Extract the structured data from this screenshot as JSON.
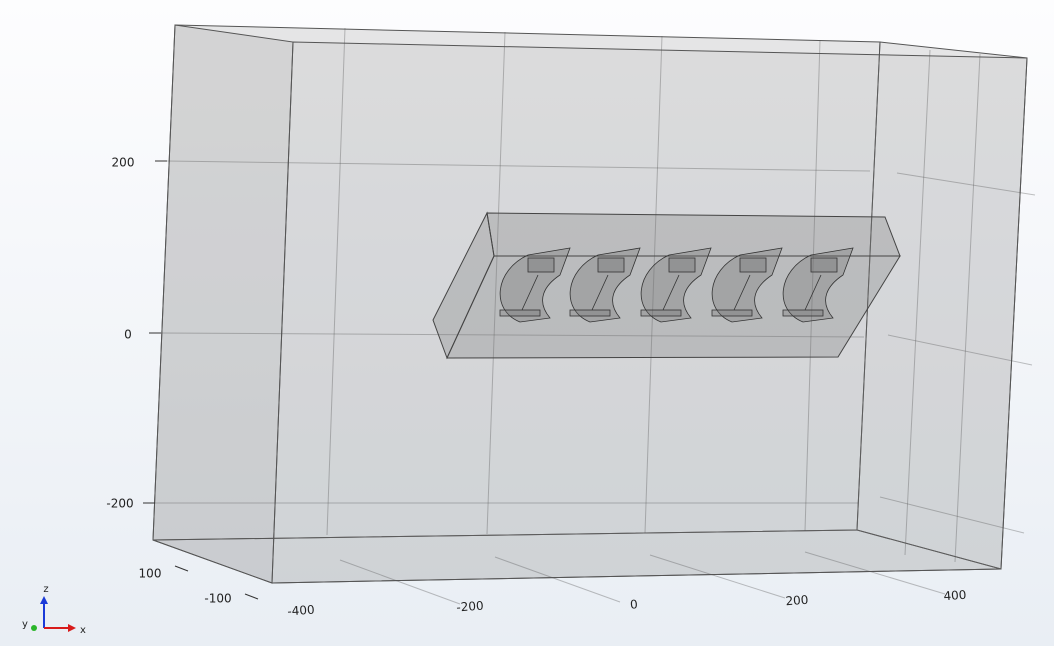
{
  "z_axis": {
    "ticks": [
      "200",
      "0",
      "-200"
    ]
  },
  "y_axis": {
    "ticks": [
      "100",
      "-100"
    ]
  },
  "x_axis": {
    "ticks": [
      "-400",
      "-200",
      "0",
      "200",
      "400"
    ]
  },
  "triad": {
    "z": "z",
    "y": "y",
    "x": "x"
  }
}
